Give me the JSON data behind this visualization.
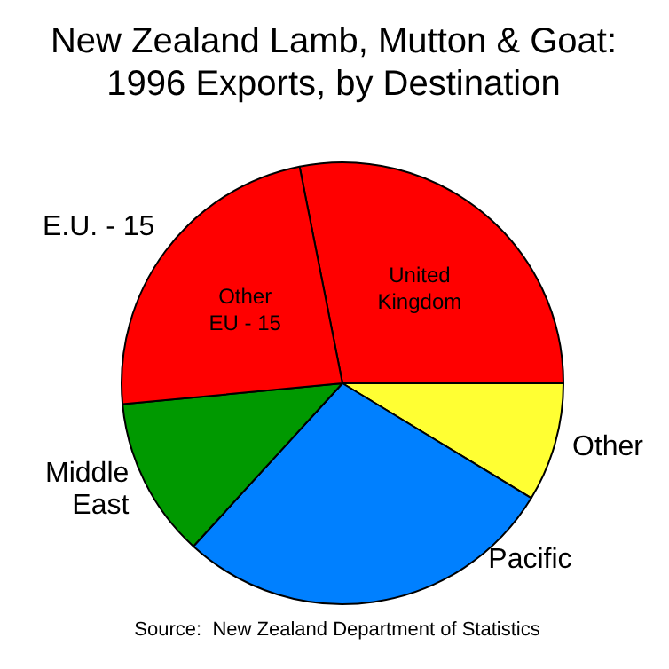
{
  "chart_data": {
    "type": "pie",
    "title": "New Zealand Lamb, Mutton & Goat:\n1996 Exports, by Destination",
    "categories": [
      "United Kingdom",
      "Other",
      "Pacific",
      "Middle East",
      "Other EU - 15"
    ],
    "values": [
      28.1,
      8.7,
      28.1,
      11.7,
      23.4
    ],
    "colors": [
      "#ff0000",
      "#ffff33",
      "#0080ff",
      "#009900",
      "#ff0000"
    ],
    "annotations": [
      "E.U. - 15",
      "Source:  New Zealand Department of Statistics"
    ],
    "legend": false
  }
}
